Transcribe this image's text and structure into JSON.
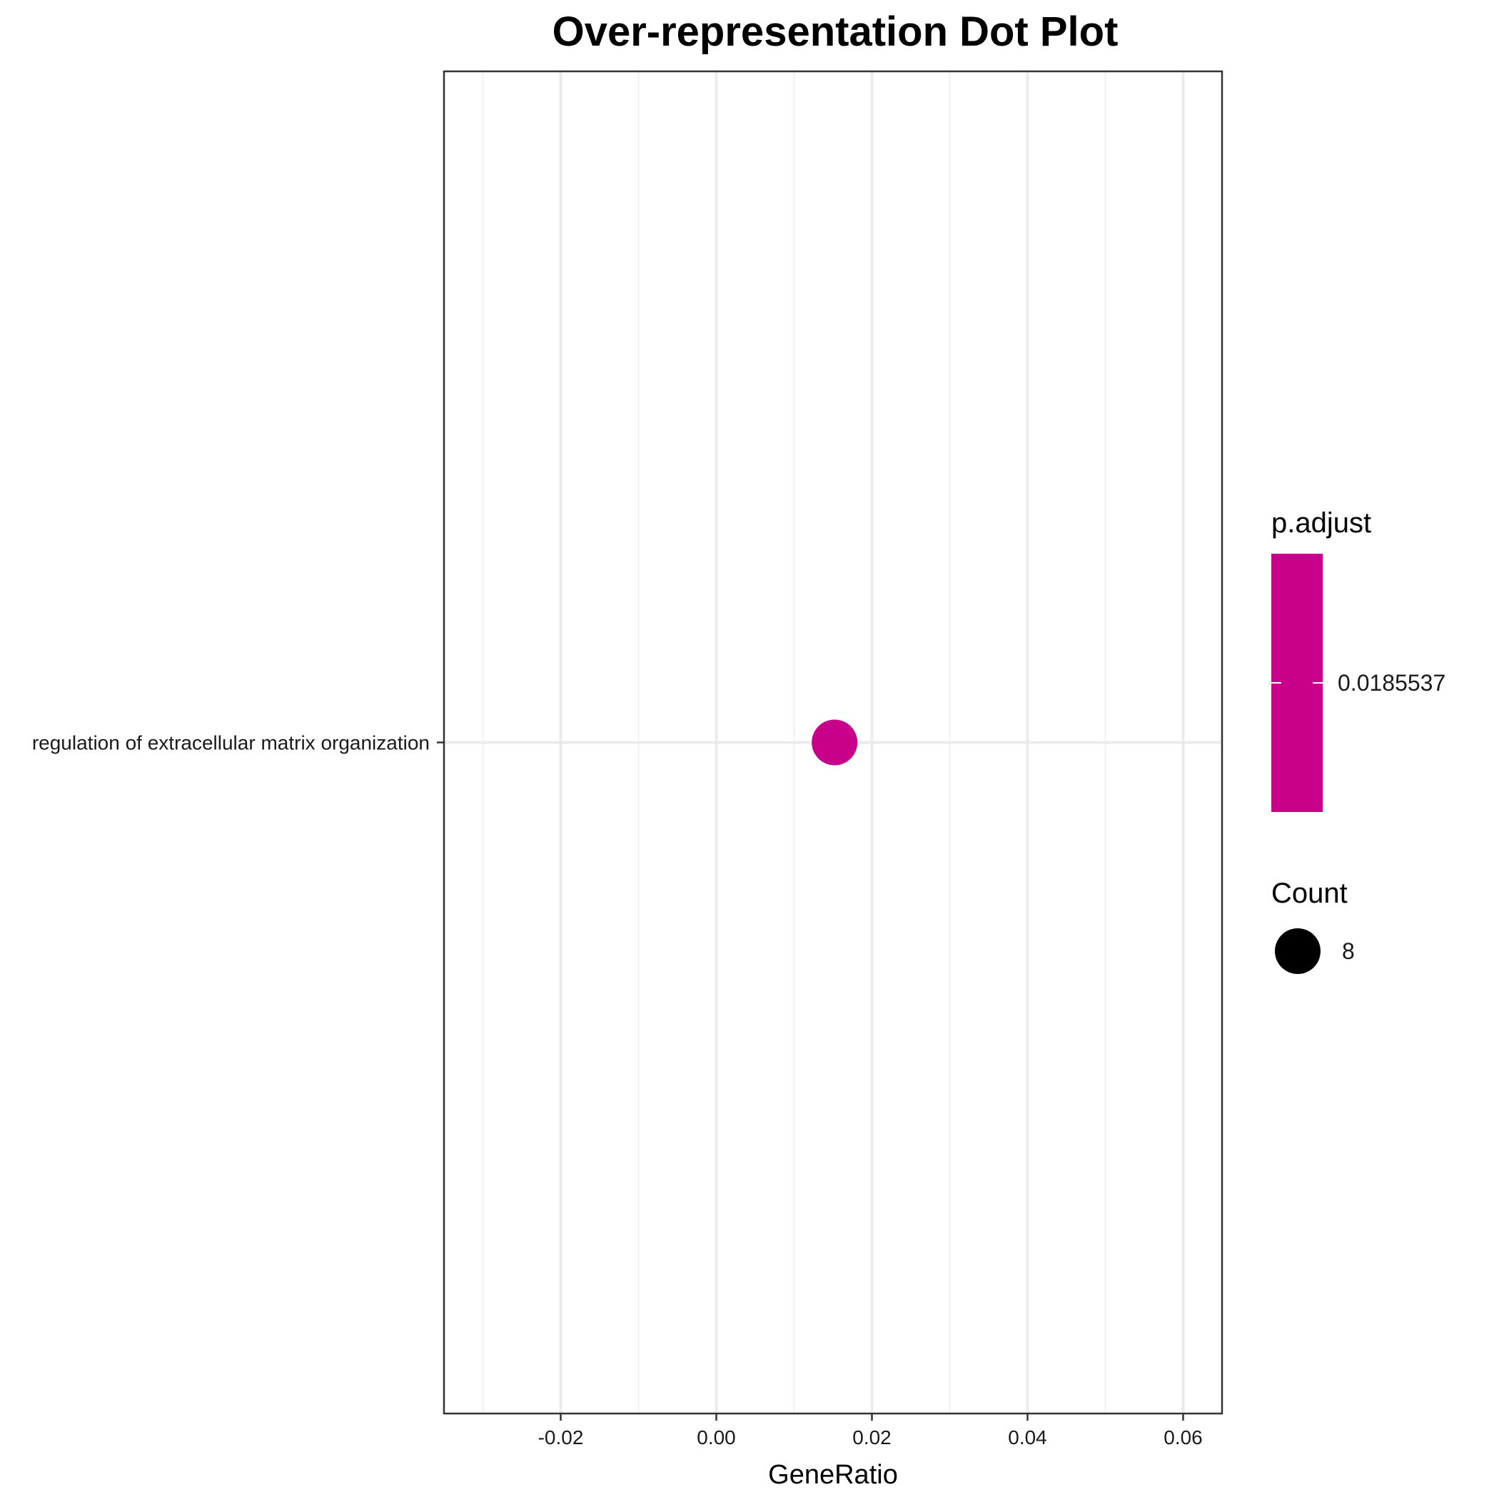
{
  "chart_data": {
    "type": "scatter",
    "title": "Over-representation Dot Plot",
    "xlabel": "GeneRatio",
    "ylabel": "",
    "xlim": [
      -0.035,
      0.065
    ],
    "x_ticks": [
      -0.02,
      0.0,
      0.02,
      0.04,
      0.06
    ],
    "x_tick_labels": [
      "-0.02",
      "0.00",
      "0.02",
      "0.04",
      "0.06"
    ],
    "x_minor_ticks": [
      -0.03,
      -0.01,
      0.01,
      0.03,
      0.05
    ],
    "categories": [
      "regulation of extracellular matrix organization"
    ],
    "points": [
      {
        "category": "regulation of extracellular matrix organization",
        "gene_ratio": 0.0152,
        "count": 8,
        "p_adjust": 0.0185537,
        "color": "#c8008a"
      }
    ],
    "grid": true,
    "legend": {
      "placement": "right",
      "color_title": "p.adjust",
      "color_label": "0.0185537",
      "color_value": "#c8008a",
      "size_title": "Count",
      "size_label": "8",
      "size_color": "#000000"
    }
  }
}
